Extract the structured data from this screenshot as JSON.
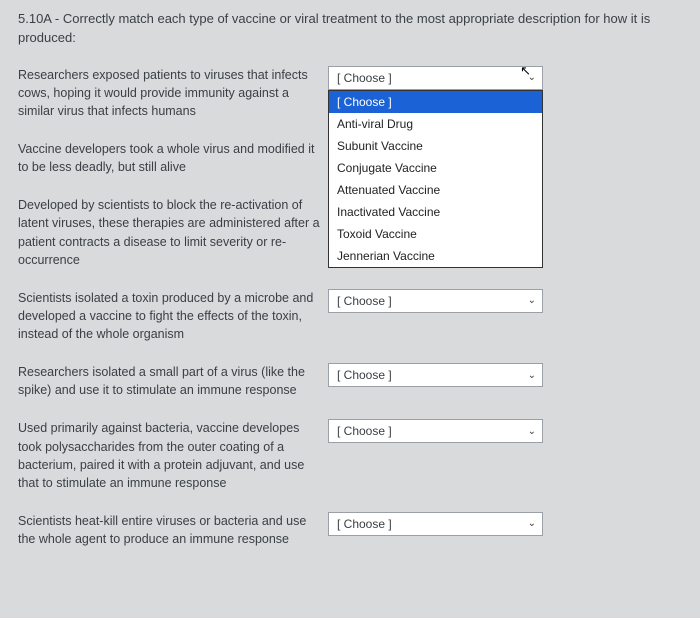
{
  "question": {
    "number": "5.10A",
    "text": "- Correctly match each type of vaccine or viral treatment to the most appropriate description for how it is produced:"
  },
  "choose_placeholder": "[ Choose ]",
  "options": [
    "[ Choose ]",
    "Anti-viral Drug",
    "Subunit Vaccine",
    "Conjugate Vaccine",
    "Attenuated Vaccine",
    "Inactivated Vaccine",
    "Toxoid Vaccine",
    "Jennerian Vaccine"
  ],
  "items": [
    {
      "prompt": "Researchers exposed patients to viruses that infects cows, hoping it would provide immunity against a similar virus that infects humans",
      "open": true
    },
    {
      "prompt": "Vaccine developers took a whole virus and modified it to be less deadly, but still alive",
      "open": false
    },
    {
      "prompt": "Developed by scientists to block the re-activation of latent viruses, these therapies are administered after a patient contracts a disease to limit severity or re-occurrence",
      "open": false,
      "hide_select": true
    },
    {
      "prompt": "Scientists isolated a toxin produced by a microbe and developed a vaccine to fight the effects of the toxin, instead of the whole organism",
      "open": false
    },
    {
      "prompt": "Researchers isolated a small part of a virus (like the spike) and use it to stimulate an immune response",
      "open": false
    },
    {
      "prompt": "Used primarily against bacteria, vaccine developes took polysaccharides from the outer coating of a bacterium, paired it with a protein adjuvant, and use that to stimulate an immune response",
      "open": false
    },
    {
      "prompt": "Scientists heat-kill entire viruses or bacteria and use the whole agent to produce an immune response",
      "open": false
    }
  ]
}
